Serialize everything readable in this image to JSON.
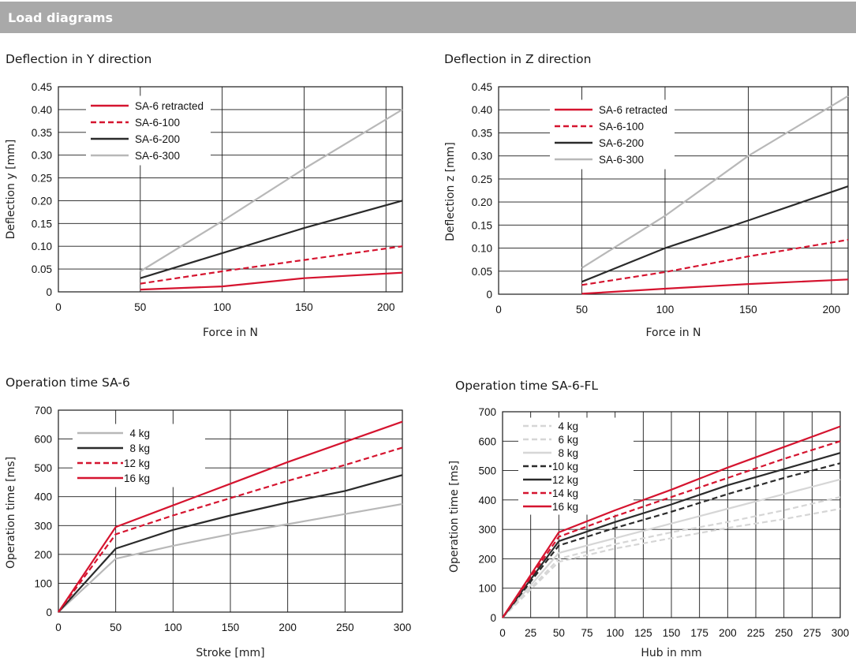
{
  "header": {
    "title": "Load diagrams"
  },
  "colors": {
    "red": "#d5142f",
    "black": "#2b2b2b",
    "gray": "#b8b8b8",
    "lightgray": "#d6d6d6",
    "header_bg": "#a9a9a9"
  },
  "chart_data": [
    {
      "type": "line",
      "title": "Deflection in Y direction",
      "xlabel": "Force in N",
      "ylabel": "Deflection y [mm]",
      "xlim": [
        0,
        210
      ],
      "ylim": [
        0,
        0.45
      ],
      "xticks": [
        "0",
        "50",
        "100",
        "150",
        "200"
      ],
      "yticks": [
        "0",
        "0.05",
        "0.10",
        "0.15",
        "0.20",
        "0.25",
        "0.30",
        "0.35",
        "0.40",
        "0.45"
      ],
      "grid": true,
      "legend_position": "top-left",
      "series": [
        {
          "name": "SA-6 retracted",
          "color": "red",
          "dash": "solid",
          "x": [
            50,
            100,
            150,
            210
          ],
          "y": [
            0.005,
            0.012,
            0.03,
            0.042
          ]
        },
        {
          "name": "SA-6-100",
          "color": "red",
          "dash": "dashed",
          "x": [
            50,
            100,
            150,
            210
          ],
          "y": [
            0.018,
            0.045,
            0.07,
            0.1
          ]
        },
        {
          "name": "SA-6-200",
          "color": "black",
          "dash": "solid",
          "x": [
            50,
            100,
            150,
            210
          ],
          "y": [
            0.03,
            0.085,
            0.14,
            0.2
          ]
        },
        {
          "name": "SA-6-300",
          "color": "gray",
          "dash": "solid",
          "x": [
            50,
            100,
            150,
            210
          ],
          "y": [
            0.045,
            0.155,
            0.27,
            0.4
          ]
        }
      ]
    },
    {
      "type": "line",
      "title": "Deflection in Z direction",
      "xlabel": "Force in N",
      "ylabel": "Deflection z [mm]",
      "xlim": [
        0,
        210
      ],
      "ylim": [
        0,
        0.45
      ],
      "xticks": [
        "0",
        "50",
        "100",
        "150",
        "200"
      ],
      "yticks": [
        "0",
        "0.05",
        "0.10",
        "0.15",
        "0.20",
        "0.25",
        "0.30",
        "0.35",
        "0.40",
        "0.45"
      ],
      "grid": true,
      "legend_position": "top-left",
      "series": [
        {
          "name": "SA-6 retracted",
          "color": "red",
          "dash": "solid",
          "x": [
            50,
            100,
            150,
            210
          ],
          "y": [
            0.001,
            0.012,
            0.022,
            0.032
          ]
        },
        {
          "name": "SA-6-100",
          "color": "red",
          "dash": "dashed",
          "x": [
            50,
            100,
            150,
            210
          ],
          "y": [
            0.02,
            0.048,
            0.082,
            0.118
          ]
        },
        {
          "name": "SA-6-200",
          "color": "black",
          "dash": "solid",
          "x": [
            50,
            100,
            150,
            210
          ],
          "y": [
            0.027,
            0.1,
            0.16,
            0.234
          ]
        },
        {
          "name": "SA-6-300",
          "color": "gray",
          "dash": "solid",
          "x": [
            50,
            100,
            150,
            210
          ],
          "y": [
            0.057,
            0.17,
            0.3,
            0.43
          ]
        }
      ]
    },
    {
      "type": "line",
      "title": "Operation time SA-6",
      "xlabel": "Stroke [mm]",
      "ylabel": "Operation time [ms]",
      "xlim": [
        0,
        300
      ],
      "ylim": [
        0,
        700
      ],
      "xticks": [
        "0",
        "50",
        "100",
        "150",
        "200",
        "250",
        "300"
      ],
      "yticks": [
        "0",
        "100",
        "200",
        "300",
        "400",
        "500",
        "600",
        "700"
      ],
      "grid": true,
      "legend_position": "top-left",
      "series": [
        {
          "name": "4 kg",
          "color": "gray",
          "dash": "solid",
          "x": [
            0,
            50,
            100,
            150,
            200,
            250,
            300
          ],
          "y": [
            0,
            185,
            230,
            270,
            305,
            340,
            375
          ]
        },
        {
          "name": "8 kg",
          "color": "black",
          "dash": "solid",
          "x": [
            0,
            50,
            100,
            150,
            200,
            250,
            300
          ],
          "y": [
            0,
            220,
            285,
            335,
            380,
            420,
            475
          ]
        },
        {
          "name": "12 kg",
          "color": "red",
          "dash": "dashed",
          "x": [
            0,
            50,
            100,
            150,
            200,
            250,
            300
          ],
          "y": [
            0,
            270,
            335,
            395,
            455,
            510,
            570
          ]
        },
        {
          "name": "16 kg",
          "color": "red",
          "dash": "solid",
          "x": [
            0,
            50,
            100,
            150,
            200,
            250,
            300
          ],
          "y": [
            0,
            295,
            370,
            445,
            520,
            590,
            660
          ]
        }
      ]
    },
    {
      "type": "line",
      "title": "Operation time SA-6-FL",
      "xlabel": "Hub in mm",
      "ylabel": "Operation time [ms]",
      "xlim": [
        0,
        300
      ],
      "ylim": [
        0,
        700
      ],
      "xticks": [
        "0",
        "25",
        "50",
        "75",
        "100",
        "125",
        "150",
        "175",
        "200",
        "225",
        "250",
        "275",
        "300"
      ],
      "yticks": [
        "0",
        "100",
        "200",
        "300",
        "400",
        "500",
        "600",
        "700"
      ],
      "grid": true,
      "legend_position": "top-left",
      "series": [
        {
          "name": "4 kg",
          "color": "lightgray",
          "dash": "dashed",
          "x": [
            0,
            50,
            100,
            150,
            200,
            250,
            300
          ],
          "y": [
            0,
            190,
            235,
            270,
            305,
            335,
            370
          ]
        },
        {
          "name": "6 kg",
          "color": "lightgray",
          "dash": "dashed",
          "x": [
            0,
            50,
            100,
            150,
            200,
            250,
            300
          ],
          "y": [
            0,
            200,
            250,
            290,
            325,
            365,
            410
          ]
        },
        {
          "name": "8 kg",
          "color": "lightgray",
          "dash": "solid",
          "x": [
            0,
            50,
            100,
            150,
            200,
            250,
            300
          ],
          "y": [
            0,
            220,
            270,
            320,
            370,
            420,
            470
          ]
        },
        {
          "name": "10 kg",
          "color": "black",
          "dash": "dashed",
          "x": [
            0,
            50,
            100,
            150,
            200,
            250,
            300
          ],
          "y": [
            0,
            245,
            305,
            360,
            420,
            475,
            525
          ]
        },
        {
          "name": "12 kg",
          "color": "black",
          "dash": "solid",
          "x": [
            0,
            50,
            100,
            150,
            200,
            250,
            300
          ],
          "y": [
            0,
            260,
            325,
            385,
            450,
            505,
            560
          ]
        },
        {
          "name": "14 kg",
          "color": "red",
          "dash": "dashed",
          "x": [
            0,
            50,
            100,
            150,
            200,
            250,
            300
          ],
          "y": [
            0,
            275,
            345,
            410,
            475,
            540,
            600
          ]
        },
        {
          "name": "16 kg",
          "color": "red",
          "dash": "solid",
          "x": [
            0,
            50,
            100,
            150,
            200,
            250,
            300
          ],
          "y": [
            0,
            290,
            365,
            435,
            510,
            580,
            650
          ]
        }
      ]
    }
  ]
}
